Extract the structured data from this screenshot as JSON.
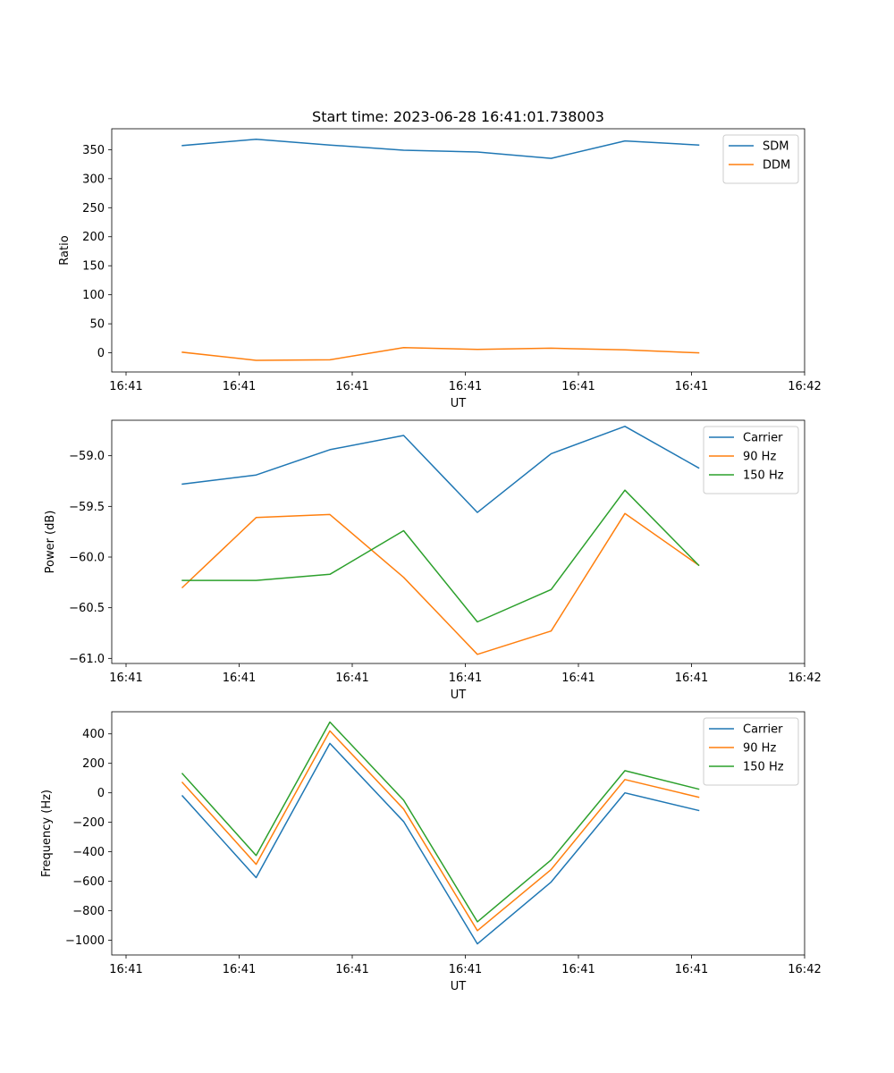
{
  "title": "Start time: 2023-06-28 16:41:01.738003",
  "colors": {
    "blue": "#1f77b4",
    "orange": "#ff7f0e",
    "green": "#2ca02c"
  },
  "chart_data": [
    {
      "type": "line",
      "title": "Start time: 2023-06-28 16:41:01.738003",
      "xlabel": "UT",
      "ylabel": "Ratio",
      "x_tick_labels": [
        "16:41",
        "16:41",
        "16:41",
        "16:41",
        "16:41",
        "16:41",
        "16:42"
      ],
      "ylim": [
        -33,
        386
      ],
      "yticks": [
        0,
        50,
        100,
        150,
        200,
        250,
        300,
        350
      ],
      "ytick_labels": [
        "0",
        "50",
        "100",
        "150",
        "200",
        "250",
        "300",
        "350"
      ],
      "legend_position": "upper right",
      "series": [
        {
          "name": "SDM",
          "color": "#1f77b4",
          "values": [
            357,
            368,
            358,
            349,
            346,
            335,
            365,
            358
          ]
        },
        {
          "name": "DDM",
          "color": "#ff7f0e",
          "values": [
            1,
            -13,
            -12,
            9,
            6,
            8,
            5,
            0
          ]
        }
      ]
    },
    {
      "type": "line",
      "xlabel": "UT",
      "ylabel": "Power (dB)",
      "x_tick_labels": [
        "16:41",
        "16:41",
        "16:41",
        "16:41",
        "16:41",
        "16:41",
        "16:42"
      ],
      "ylim": [
        -61.05,
        -58.65
      ],
      "yticks": [
        -61.0,
        -60.5,
        -60.0,
        -59.5,
        -59.0
      ],
      "ytick_labels": [
        "−61.0",
        "−60.5",
        "−60.0",
        "−59.5",
        "−59.0"
      ],
      "legend_position": "upper right",
      "series": [
        {
          "name": "Carrier",
          "color": "#1f77b4",
          "values": [
            -59.28,
            -59.19,
            -58.94,
            -58.8,
            -59.56,
            -58.98,
            -58.71,
            -59.12
          ]
        },
        {
          "name": "90 Hz",
          "color": "#ff7f0e",
          "values": [
            -60.3,
            -59.61,
            -59.58,
            -60.2,
            -60.96,
            -60.73,
            -59.57,
            -60.08
          ]
        },
        {
          "name": "150 Hz",
          "color": "#2ca02c",
          "values": [
            -60.23,
            -60.23,
            -60.17,
            -59.74,
            -60.64,
            -60.32,
            -59.34,
            -60.08
          ]
        }
      ]
    },
    {
      "type": "line",
      "xlabel": "UT",
      "ylabel": "Frequency (Hz)",
      "x_tick_labels": [
        "16:41",
        "16:41",
        "16:41",
        "16:41",
        "16:41",
        "16:41",
        "16:42"
      ],
      "ylim": [
        -1100,
        550
      ],
      "yticks": [
        -1000,
        -800,
        -600,
        -400,
        -200,
        0,
        200,
        400
      ],
      "ytick_labels": [
        "−1000",
        "−800",
        "−600",
        "−400",
        "−200",
        "0",
        "200",
        "400"
      ],
      "legend_position": "upper right",
      "series": [
        {
          "name": "Carrier",
          "color": "#1f77b4",
          "values": [
            -20,
            -575,
            335,
            -195,
            -1025,
            -605,
            0,
            -120
          ]
        },
        {
          "name": "90 Hz",
          "color": "#ff7f0e",
          "values": [
            70,
            -485,
            420,
            -110,
            -935,
            -520,
            90,
            -30
          ]
        },
        {
          "name": "150 Hz",
          "color": "#2ca02c",
          "values": [
            130,
            -425,
            480,
            -50,
            -875,
            -455,
            150,
            25
          ]
        }
      ]
    }
  ]
}
